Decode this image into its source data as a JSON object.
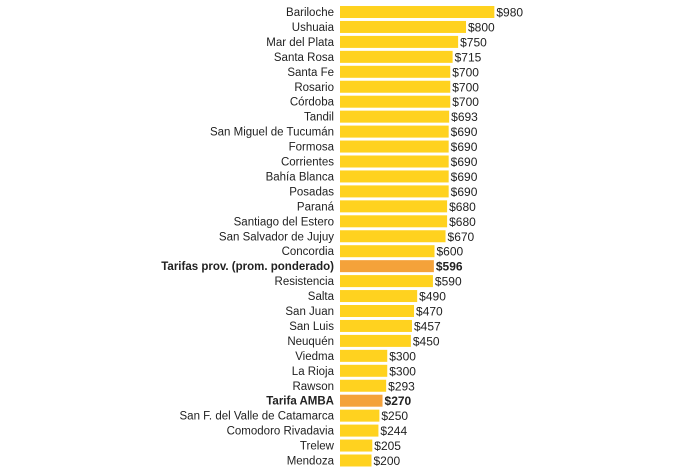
{
  "chart_data": {
    "type": "bar",
    "orientation": "horizontal",
    "title": "",
    "xlabel": "",
    "ylabel": "",
    "value_prefix": "$",
    "xlim": [
      0,
      1000
    ],
    "grid": false,
    "categories": [
      "Bariloche",
      "Ushuaia",
      "Mar del Plata",
      "Santa Rosa",
      "Santa Fe",
      "Rosario",
      "Córdoba",
      "Tandil",
      "San Miguel de Tucumán",
      "Formosa",
      "Corrientes",
      "Bahía Blanca",
      "Posadas",
      "Paraná",
      "Santiago del Estero",
      "San Salvador de Jujuy",
      "Concordia",
      "Tarifas prov. (prom. ponderado)",
      "Resistencia",
      "Salta",
      "San Juan",
      "San Luis",
      "Neuquén",
      "Viedma",
      "La Rioja",
      "Rawson",
      "Tarifa AMBA",
      "San F. del Valle de Catamarca",
      "Comodoro Rivadavia",
      "Trelew",
      "Mendoza"
    ],
    "values": [
      980,
      800,
      750,
      715,
      700,
      700,
      700,
      693,
      690,
      690,
      690,
      690,
      690,
      680,
      680,
      670,
      600,
      596,
      590,
      490,
      470,
      457,
      450,
      300,
      300,
      293,
      270,
      250,
      244,
      205,
      200
    ],
    "highlighted": [
      "Tarifas prov. (prom. ponderado)",
      "Tarifa AMBA"
    ],
    "colors": {
      "bar": "#FFD21F",
      "highlight": "#F4A23A"
    }
  }
}
